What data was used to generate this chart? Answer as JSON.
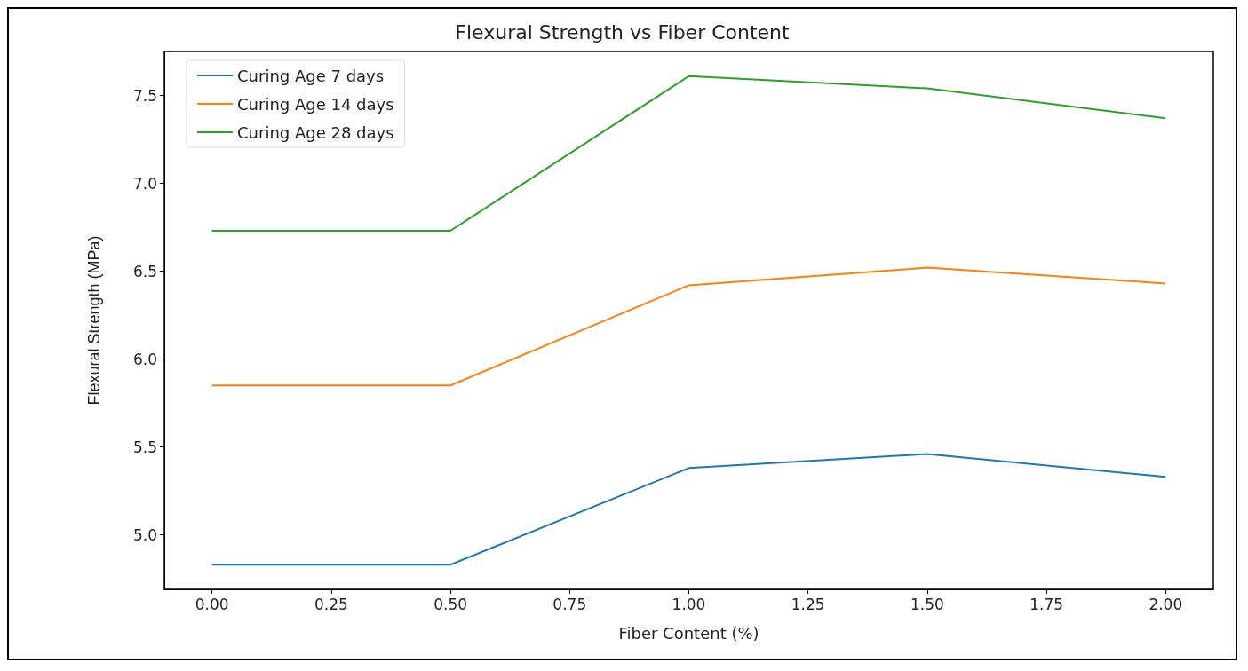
{
  "chart_data": {
    "type": "line",
    "title": "Flexural Strength vs Fiber Content",
    "xlabel": "Fiber Content (%)",
    "ylabel": "Flexural Strength (MPa)",
    "x": [
      0,
      0.5,
      1.0,
      1.5,
      2.0
    ],
    "series": [
      {
        "name": "Curing Age 7 days",
        "color": "#1f77b4",
        "values": [
          4.83,
          4.83,
          5.38,
          5.46,
          5.33
        ]
      },
      {
        "name": "Curing Age 14 days",
        "color": "#ff7f0e",
        "values": [
          5.85,
          5.85,
          6.42,
          6.52,
          6.43
        ]
      },
      {
        "name": "Curing Age 28 days",
        "color": "#2ca02c",
        "values": [
          6.73,
          6.73,
          7.61,
          7.54,
          7.37
        ]
      }
    ],
    "xlim": [
      -0.1,
      2.1
    ],
    "xticks": [
      {
        "value": 0,
        "label": "0.00"
      },
      {
        "value": 0.25,
        "label": "0.25"
      },
      {
        "value": 0.5,
        "label": "0.50"
      },
      {
        "value": 0.75,
        "label": "0.75"
      },
      {
        "value": 1,
        "label": "1.00"
      },
      {
        "value": 1.25,
        "label": "1.25"
      },
      {
        "value": 1.5,
        "label": "1.50"
      },
      {
        "value": 1.75,
        "label": "1.75"
      },
      {
        "value": 2,
        "label": "2.00"
      }
    ],
    "ylim": [
      4.69,
      7.75
    ],
    "yticks": [
      {
        "value": 5,
        "label": "5.0"
      },
      {
        "value": 5.5,
        "label": "5.5"
      },
      {
        "value": 6,
        "label": "6.0"
      },
      {
        "value": 6.5,
        "label": "6.5"
      },
      {
        "value": 7,
        "label": "7.0"
      },
      {
        "value": 7.5,
        "label": "7.5"
      }
    ],
    "grid": false,
    "legend": "top left",
    "marker": "none",
    "line_style": "solid"
  }
}
